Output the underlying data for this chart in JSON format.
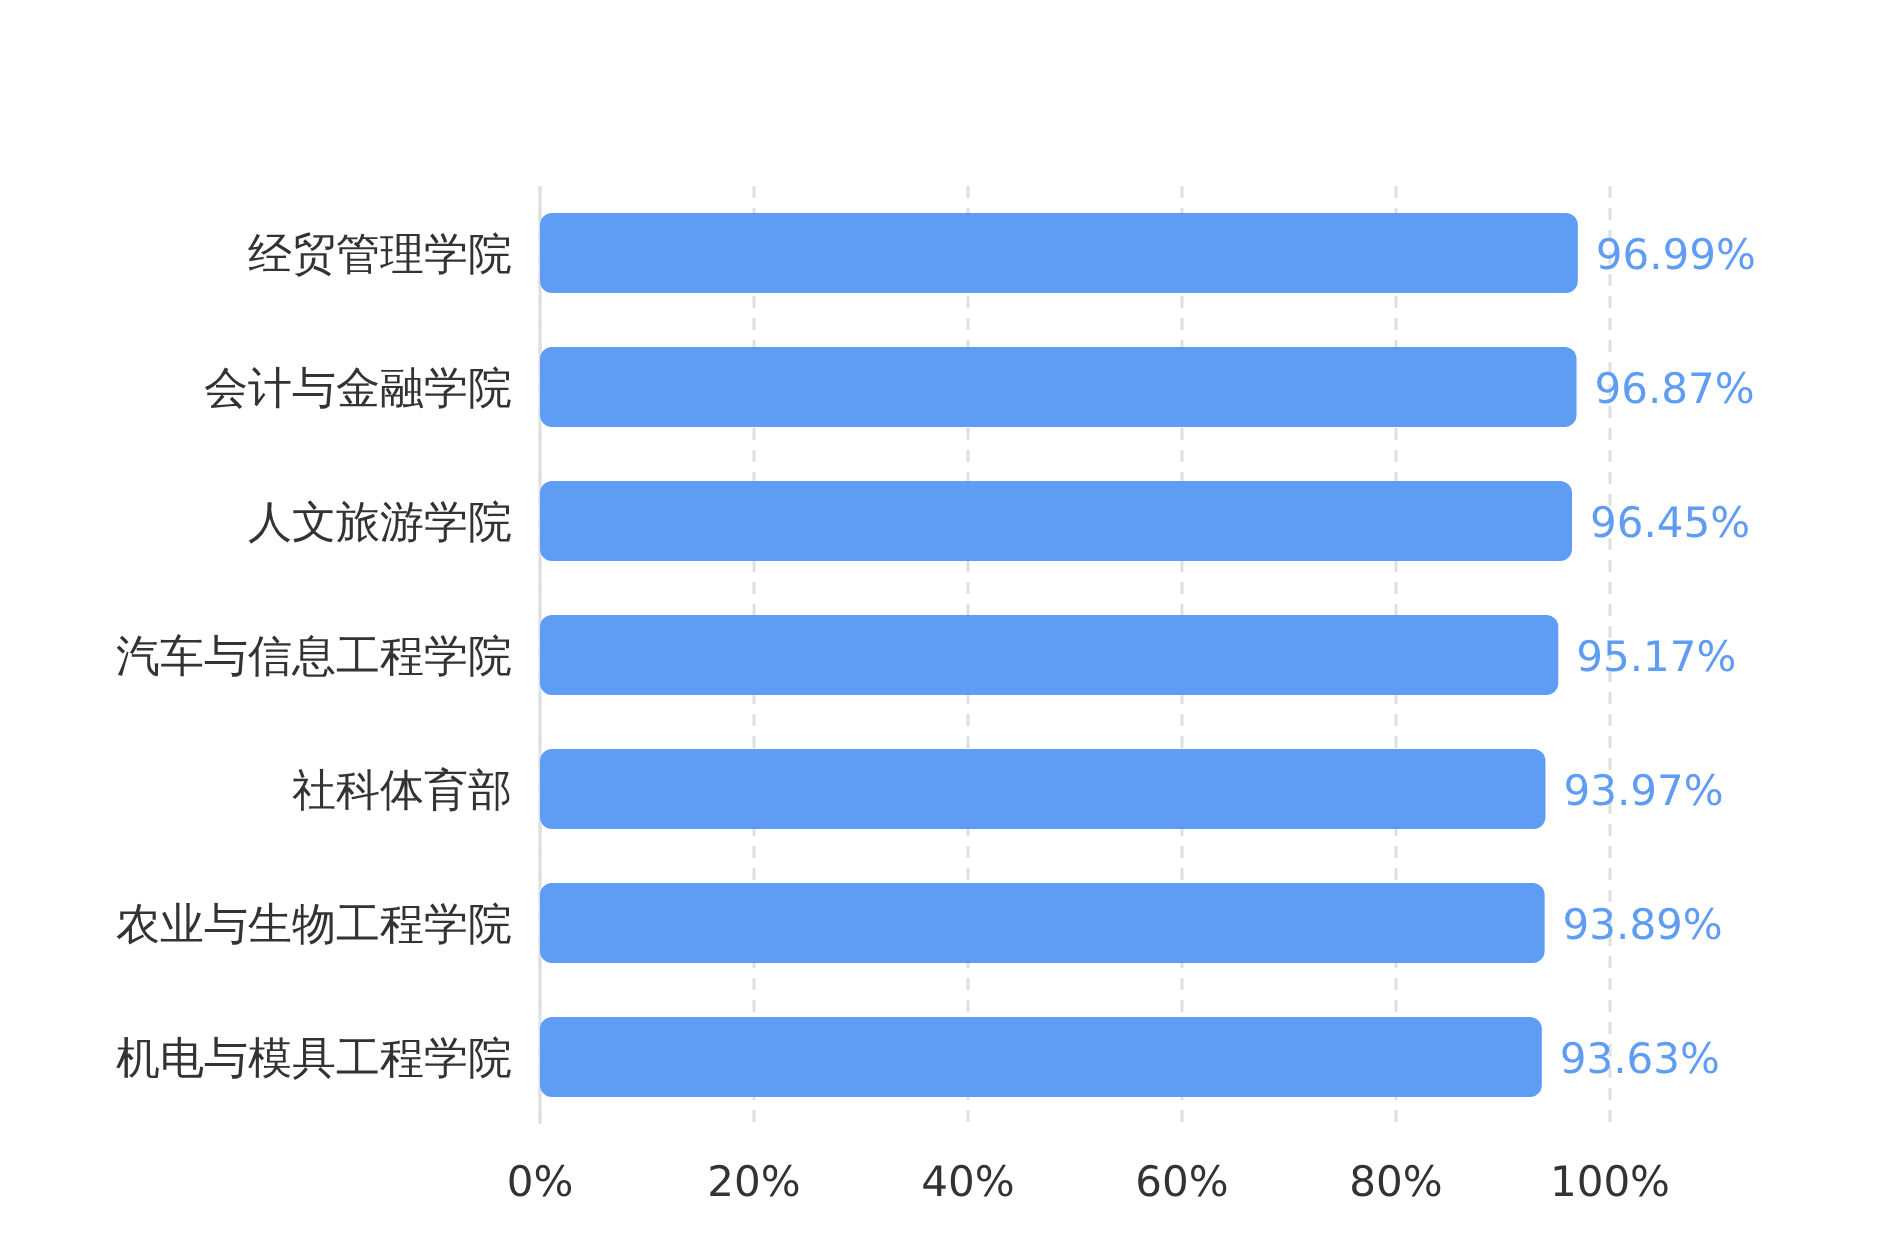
{
  "chart_data": {
    "type": "bar",
    "orientation": "horizontal",
    "categories": [
      "经贸管理学院",
      "会计与金融学院",
      "人文旅游学院",
      "汽车与信息工程学院",
      "社科体育部",
      "农业与生物工程学院",
      "机电与模具工程学院"
    ],
    "values": [
      96.99,
      96.87,
      96.45,
      95.17,
      93.97,
      93.89,
      93.63
    ],
    "value_labels": [
      "96.99%",
      "96.87%",
      "96.45%",
      "95.17%",
      "93.97%",
      "93.89%",
      "93.63%"
    ],
    "color": "#5f9cf4",
    "xlim": [
      0,
      100
    ],
    "xticks": [
      {
        "value": 0,
        "label": "0%"
      },
      {
        "value": 20,
        "label": "20%"
      },
      {
        "value": 40,
        "label": "40%"
      },
      {
        "value": 60,
        "label": "60%"
      },
      {
        "value": 80,
        "label": "80%"
      },
      {
        "value": 100,
        "label": "100%"
      }
    ],
    "grid": "x"
  }
}
